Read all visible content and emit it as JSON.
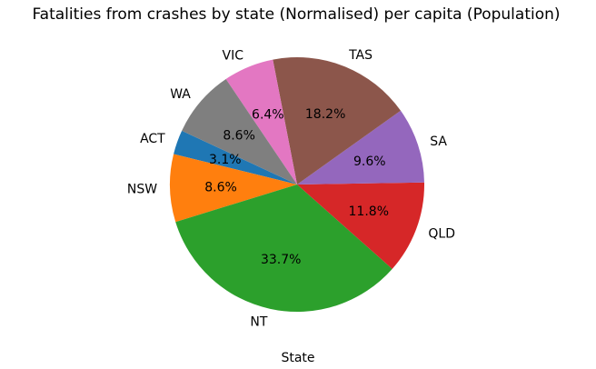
{
  "chart_data": {
    "type": "pie",
    "title": "Fatalities from crashes by state (Normalised) per capita (Population)",
    "xlabel": "State",
    "start_angle_deg": 155,
    "direction": "counterclockwise",
    "slices": [
      {
        "label": "ACT",
        "value": 3.1,
        "display": "3.1%",
        "color": "#1f77b4"
      },
      {
        "label": "NSW",
        "value": 8.6,
        "display": "8.6%",
        "color": "#ff7f0e"
      },
      {
        "label": "NT",
        "value": 33.7,
        "display": "33.7%",
        "color": "#2ca02c"
      },
      {
        "label": "QLD",
        "value": 11.8,
        "display": "11.8%",
        "color": "#d62728"
      },
      {
        "label": "SA",
        "value": 9.6,
        "display": "9.6%",
        "color": "#9467bd"
      },
      {
        "label": "TAS",
        "value": 18.2,
        "display": "18.2%",
        "color": "#8c564b"
      },
      {
        "label": "VIC",
        "value": 6.4,
        "display": "6.4%",
        "color": "#e377c2"
      },
      {
        "label": "WA",
        "value": 8.6,
        "display": "8.6%",
        "color": "#7f7f7f"
      }
    ]
  }
}
